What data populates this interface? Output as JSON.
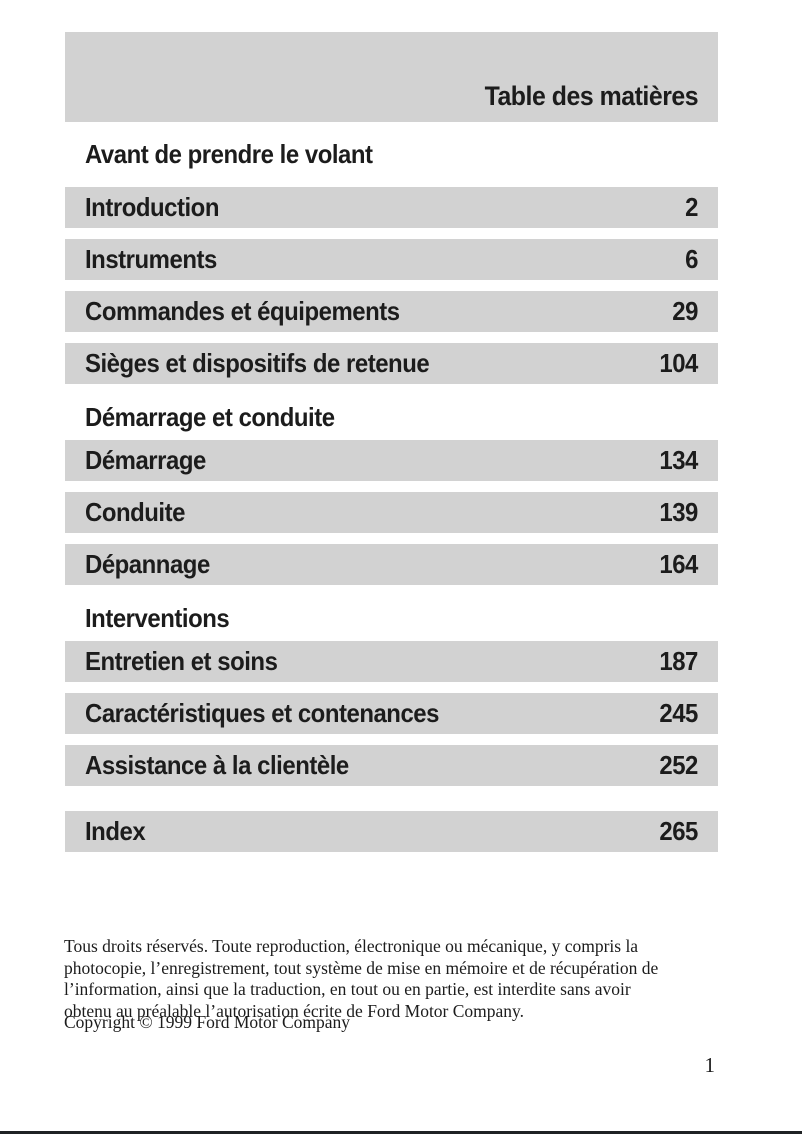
{
  "header": {
    "title": "Table des matières"
  },
  "toc": {
    "sections": [
      {
        "heading": "Avant de prendre le volant",
        "entries": [
          {
            "label": "Introduction",
            "page": "2"
          },
          {
            "label": "Instruments",
            "page": "6"
          },
          {
            "label": "Commandes et équipements",
            "page": "29"
          },
          {
            "label": "Sièges et dispositifs de retenue",
            "page": "104"
          }
        ]
      },
      {
        "heading": "Démarrage et conduite",
        "entries": [
          {
            "label": "Démarrage",
            "page": "134"
          },
          {
            "label": "Conduite",
            "page": "139"
          },
          {
            "label": "Dépannage",
            "page": "164"
          }
        ]
      },
      {
        "heading": "Interventions",
        "entries": [
          {
            "label": "Entretien et soins",
            "page": "187"
          },
          {
            "label": "Caractéristiques et contenances",
            "page": "245"
          },
          {
            "label": "Assistance à la clientèle",
            "page": "252"
          }
        ]
      }
    ],
    "index": {
      "label": "Index",
      "page": "265"
    }
  },
  "footer": {
    "rights_lines": [
      "Tous droits réservés. Toute reproduction, électronique ou mécanique, y compris la",
      "photocopie, l’enregistrement, tout système de mise en mémoire et de récupération de",
      "l’information, ainsi que la traduction, en tout ou en partie, est interdite sans avoir",
      "obtenu au préalable l’autorisation écrite de Ford Motor Company."
    ],
    "copyright": "Copyright © 1999 Ford Motor Company",
    "page_number": "1"
  },
  "colors": {
    "band_gray": "#d2d2d2",
    "ink": "#1c1c1c",
    "rule": "#1f2224"
  }
}
